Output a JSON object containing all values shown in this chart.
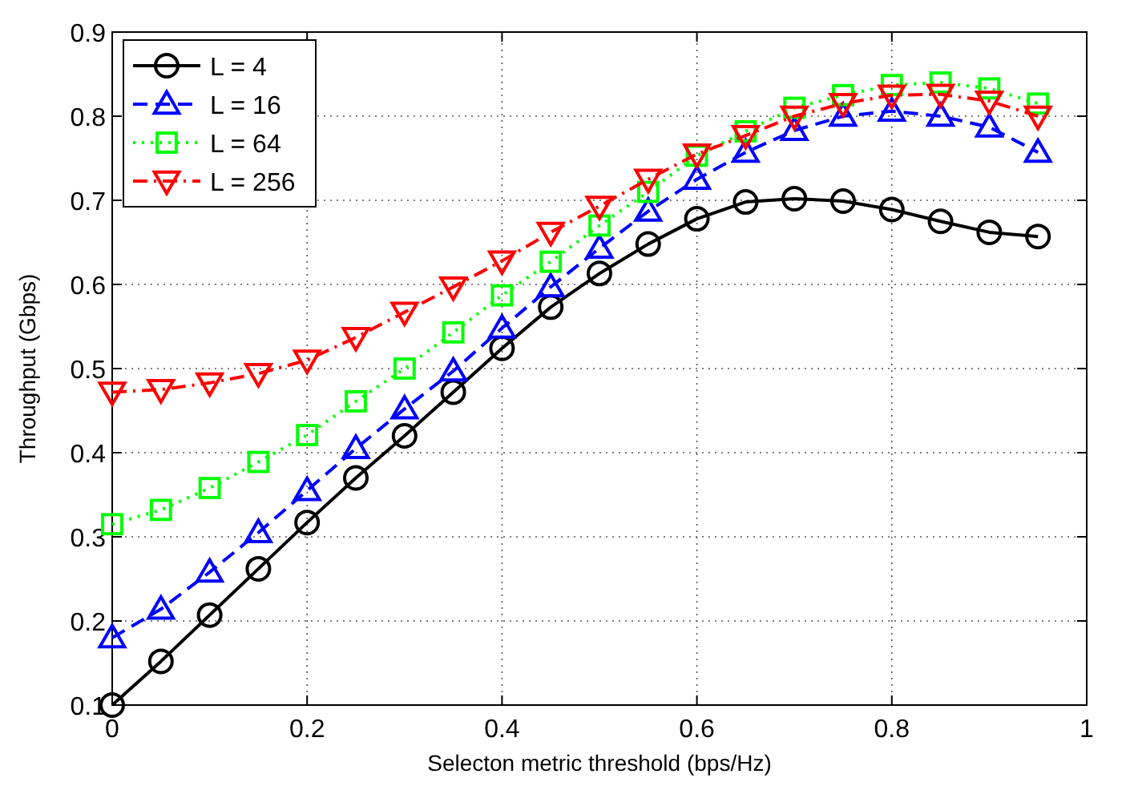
{
  "chart_data": {
    "type": "line",
    "xlabel": "Selecton metric threshold (bps/Hz)",
    "ylabel": "Throughput (Gbps)",
    "x": [
      0,
      0.05,
      0.1,
      0.15,
      0.2,
      0.25,
      0.3,
      0.35,
      0.4,
      0.45,
      0.5,
      0.55,
      0.6,
      0.65,
      0.7,
      0.75,
      0.8,
      0.85,
      0.9,
      0.95
    ],
    "series": [
      {
        "name": "L = 4",
        "color": "#000000",
        "marker": "circle",
        "line_style": "solid",
        "values": [
          0.1,
          0.152,
          0.207,
          0.262,
          0.317,
          0.37,
          0.42,
          0.472,
          0.524,
          0.573,
          0.613,
          0.648,
          0.678,
          0.698,
          0.702,
          0.699,
          0.689,
          0.675,
          0.662,
          0.657
        ]
      },
      {
        "name": "L = 16",
        "color": "#0000ff",
        "marker": "triangle",
        "line_style": "dashed",
        "values": [
          0.18,
          0.214,
          0.258,
          0.305,
          0.355,
          0.405,
          0.452,
          0.497,
          0.548,
          0.597,
          0.643,
          0.687,
          0.725,
          0.757,
          0.783,
          0.8,
          0.806,
          0.8,
          0.787,
          0.757
        ]
      },
      {
        "name": "L = 64",
        "color": "#00ff00",
        "marker": "square",
        "line_style": "dotted",
        "values": [
          0.315,
          0.332,
          0.358,
          0.389,
          0.421,
          0.461,
          0.5,
          0.543,
          0.587,
          0.627,
          0.67,
          0.71,
          0.753,
          0.782,
          0.81,
          0.825,
          0.837,
          0.84,
          0.833,
          0.815
        ]
      },
      {
        "name": "L = 256",
        "color": "#ff0000",
        "marker": "triangle-down",
        "line_style": "dashdot",
        "values": [
          0.472,
          0.475,
          0.483,
          0.494,
          0.51,
          0.537,
          0.567,
          0.597,
          0.628,
          0.662,
          0.693,
          0.725,
          0.755,
          0.777,
          0.8,
          0.815,
          0.825,
          0.826,
          0.818,
          0.8
        ]
      }
    ],
    "xlim": [
      0,
      1
    ],
    "xticks": [
      0,
      0.2,
      0.4,
      0.6,
      0.8,
      1
    ],
    "ylim": [
      0.1,
      0.9
    ],
    "yticks": [
      0.1,
      0.2,
      0.3,
      0.4,
      0.5,
      0.6,
      0.7,
      0.8,
      0.9
    ],
    "grid": true,
    "legend": "top left"
  }
}
